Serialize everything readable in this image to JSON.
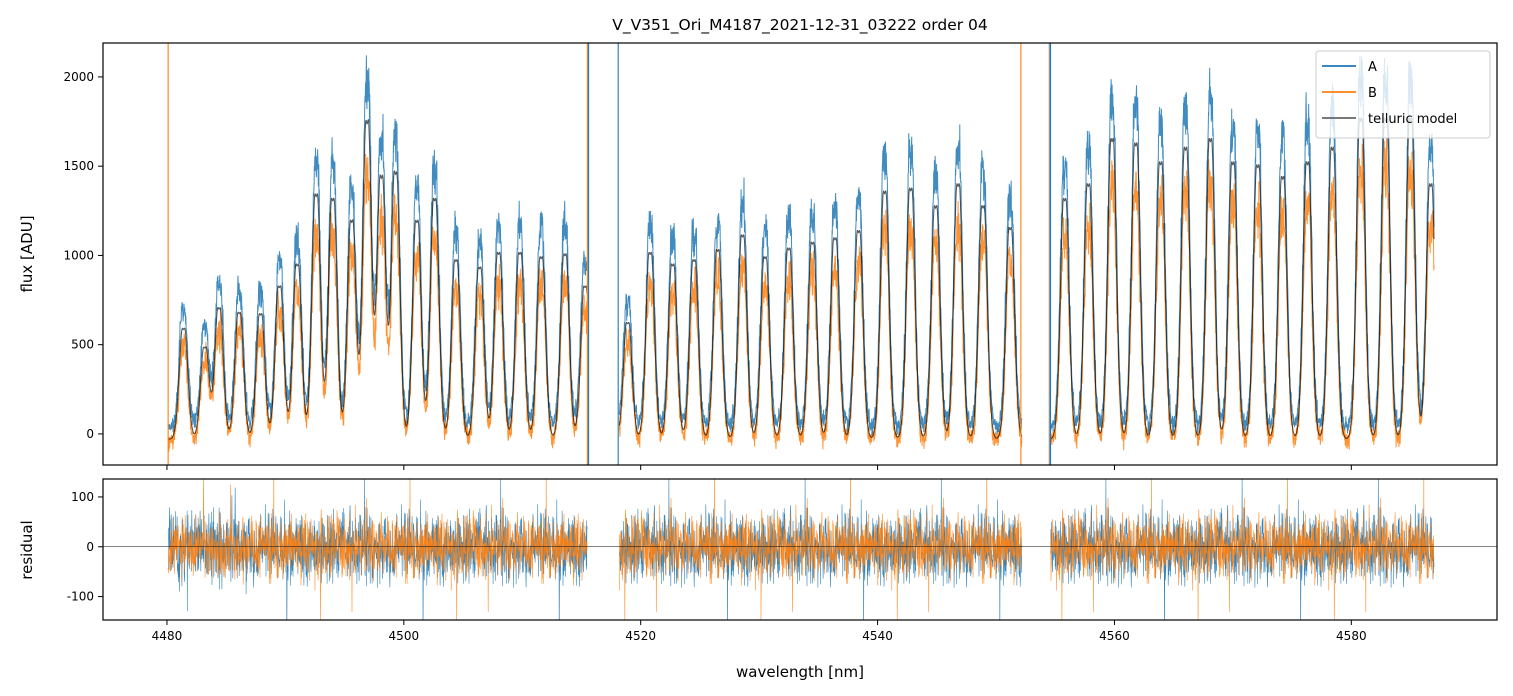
{
  "chart_data": {
    "type": "line",
    "title": "V_V351_Ori_M4187_2021-12-31_03222  order 04",
    "xlabel": "wavelength [nm]",
    "panels": [
      {
        "name": "flux",
        "ylabel": "flux [ADU]",
        "ylim": [
          -174,
          2190
        ],
        "yticks": [
          0,
          500,
          1000,
          1500,
          2000
        ]
      },
      {
        "name": "residual",
        "ylabel": "residual",
        "ylim": [
          -147,
          136
        ],
        "yticks": [
          -100,
          0,
          100
        ]
      }
    ],
    "xlim": [
      4474.6,
      4592.3
    ],
    "xticks": [
      4480,
      4500,
      4520,
      4540,
      4560,
      4580
    ],
    "legend": {
      "placement": "top-right",
      "entries": [
        "A",
        "B",
        "telluric model"
      ]
    },
    "colors": {
      "A": "#1f77b4",
      "B": "#ff7f0e",
      "telluric model": "#000000"
    },
    "segments": [
      [
        4480.1,
        4515.5
      ],
      [
        4518.2,
        4552.2
      ],
      [
        4554.6,
        4587.0
      ]
    ],
    "peaks": [
      {
        "wl": 4481.4,
        "A": 760
      },
      {
        "wl": 4483.2,
        "A": 630
      },
      {
        "wl": 4484.4,
        "A": 900
      },
      {
        "wl": 4486.1,
        "A": 870
      },
      {
        "wl": 4487.9,
        "A": 860
      },
      {
        "wl": 4489.5,
        "A": 1050
      },
      {
        "wl": 4491.0,
        "A": 1200
      },
      {
        "wl": 4492.6,
        "A": 1680
      },
      {
        "wl": 4494.0,
        "A": 1650
      },
      {
        "wl": 4495.6,
        "A": 1500
      },
      {
        "wl": 4496.9,
        "A": 2180
      },
      {
        "wl": 4498.1,
        "A": 1800
      },
      {
        "wl": 4499.3,
        "A": 1830
      },
      {
        "wl": 4501.1,
        "A": 1500
      },
      {
        "wl": 4502.6,
        "A": 1650
      },
      {
        "wl": 4504.4,
        "A": 1230
      },
      {
        "wl": 4506.4,
        "A": 1180
      },
      {
        "wl": 4508.0,
        "A": 1280
      },
      {
        "wl": 4509.8,
        "A": 1280
      },
      {
        "wl": 4511.6,
        "A": 1250
      },
      {
        "wl": 4513.6,
        "A": 1270
      },
      {
        "wl": 4515.3,
        "A": 1050
      },
      {
        "wl": 4518.9,
        "A": 800
      },
      {
        "wl": 4520.8,
        "A": 1280
      },
      {
        "wl": 4522.7,
        "A": 1200
      },
      {
        "wl": 4524.5,
        "A": 1230
      },
      {
        "wl": 4526.5,
        "A": 1300
      },
      {
        "wl": 4528.6,
        "A": 1400
      },
      {
        "wl": 4530.5,
        "A": 1250
      },
      {
        "wl": 4532.5,
        "A": 1310
      },
      {
        "wl": 4534.5,
        "A": 1350
      },
      {
        "wl": 4536.4,
        "A": 1380
      },
      {
        "wl": 4538.4,
        "A": 1430
      },
      {
        "wl": 4540.6,
        "A": 1700
      },
      {
        "wl": 4542.8,
        "A": 1720
      },
      {
        "wl": 4544.9,
        "A": 1600
      },
      {
        "wl": 4546.8,
        "A": 1750
      },
      {
        "wl": 4548.9,
        "A": 1600
      },
      {
        "wl": 4551.2,
        "A": 1450
      },
      {
        "wl": 4555.8,
        "A": 1650
      },
      {
        "wl": 4557.8,
        "A": 1750
      },
      {
        "wl": 4559.8,
        "A": 2060
      },
      {
        "wl": 4561.8,
        "A": 2030
      },
      {
        "wl": 4563.9,
        "A": 1900
      },
      {
        "wl": 4566.0,
        "A": 2000
      },
      {
        "wl": 4568.1,
        "A": 2060
      },
      {
        "wl": 4570.0,
        "A": 1900
      },
      {
        "wl": 4572.1,
        "A": 1880
      },
      {
        "wl": 4574.2,
        "A": 1800
      },
      {
        "wl": 4576.3,
        "A": 1900
      },
      {
        "wl": 4578.4,
        "A": 2000
      },
      {
        "wl": 4580.8,
        "A": 2200
      },
      {
        "wl": 4582.9,
        "A": 2200
      },
      {
        "wl": 4585.0,
        "A": 2200
      },
      {
        "wl": 4586.7,
        "A": 1750
      }
    ],
    "model_trough": -30,
    "B_scale": 0.78
  }
}
